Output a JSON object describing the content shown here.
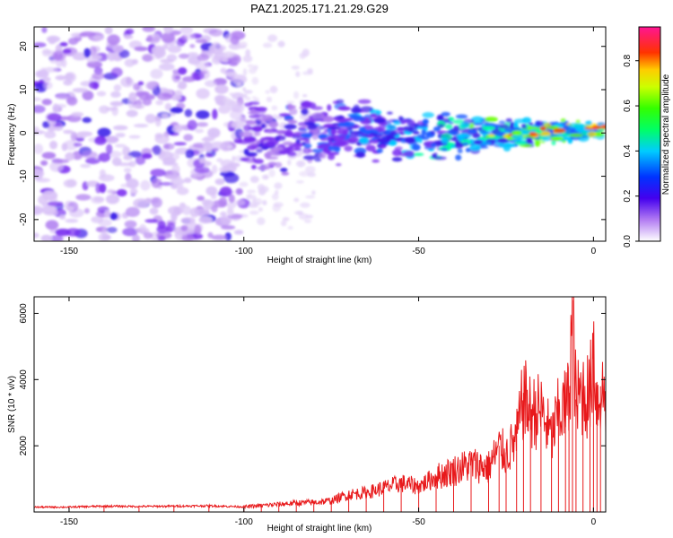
{
  "title": "PAZ1.2025.171.21.29.G29",
  "colors": {
    "background": "#ffffff",
    "axis": "#000000",
    "snr_line": "#e8191b"
  },
  "chart_data": [
    {
      "type": "heatmap",
      "xlabel": "Height of straight line (km)",
      "ylabel": "Frequency (Hz)",
      "xlim": [
        -160,
        3.5
      ],
      "ylim": [
        -25,
        24.5
      ],
      "xticks": [
        -150,
        -100,
        -50,
        0
      ],
      "yticks": [
        -20,
        -10,
        0,
        10,
        20
      ],
      "colorbar": {
        "label": "Normalized spectral amplitude",
        "range": [
          0,
          0.95
        ],
        "ticks": [
          0.0,
          0.2,
          0.4,
          0.6,
          0.8
        ],
        "colormap": "rainbow-white-violet-blue-cyan-green-yellow-red-pink",
        "placement": "right"
      },
      "description_of_content": [
        {
          "x_range": [
            -160,
            -100
          ],
          "frequency_range": [
            -24,
            24
          ],
          "amplitude": 0.05
        },
        {
          "x_range": [
            -100,
            -30
          ],
          "frequency_center": [
            -3,
            3
          ],
          "amplitude": 0.12
        },
        {
          "x_range": [
            -30,
            3
          ],
          "frequency_center": [
            -1,
            2
          ],
          "amplitude": 0.3
        }
      ]
    },
    {
      "type": "line",
      "xlabel": "Height of straight line (km)",
      "ylabel": "SNR (10 * v/v)",
      "xlim": [
        -160,
        3.5
      ],
      "ylim": [
        0,
        6500
      ],
      "xticks": [
        -150,
        -100,
        -50,
        0
      ],
      "yticks": [
        2000,
        4000,
        6000
      ],
      "series": [
        {
          "color": "#e8191b",
          "x": [
            -160,
            -150,
            -140,
            -130,
            -120,
            -110,
            -100,
            -95,
            -90,
            -85,
            -80,
            -75,
            -70,
            -65,
            -60,
            -55,
            -50,
            -45,
            -40,
            -35,
            -30,
            -27,
            -25,
            -22,
            -20,
            -18,
            -15,
            -12,
            -10,
            -8,
            -7,
            -6,
            -5,
            -3,
            -1,
            0,
            1,
            2,
            3.5
          ],
          "y": [
            150,
            150,
            180,
            170,
            180,
            190,
            160,
            200,
            240,
            280,
            300,
            350,
            550,
            600,
            750,
            900,
            800,
            1100,
            1300,
            1500,
            1400,
            2000,
            1800,
            2300,
            3600,
            3100,
            3200,
            2300,
            3100,
            3300,
            3600,
            6400,
            3400,
            3800,
            3600,
            5400,
            3400,
            3800,
            3600
          ]
        }
      ]
    }
  ]
}
